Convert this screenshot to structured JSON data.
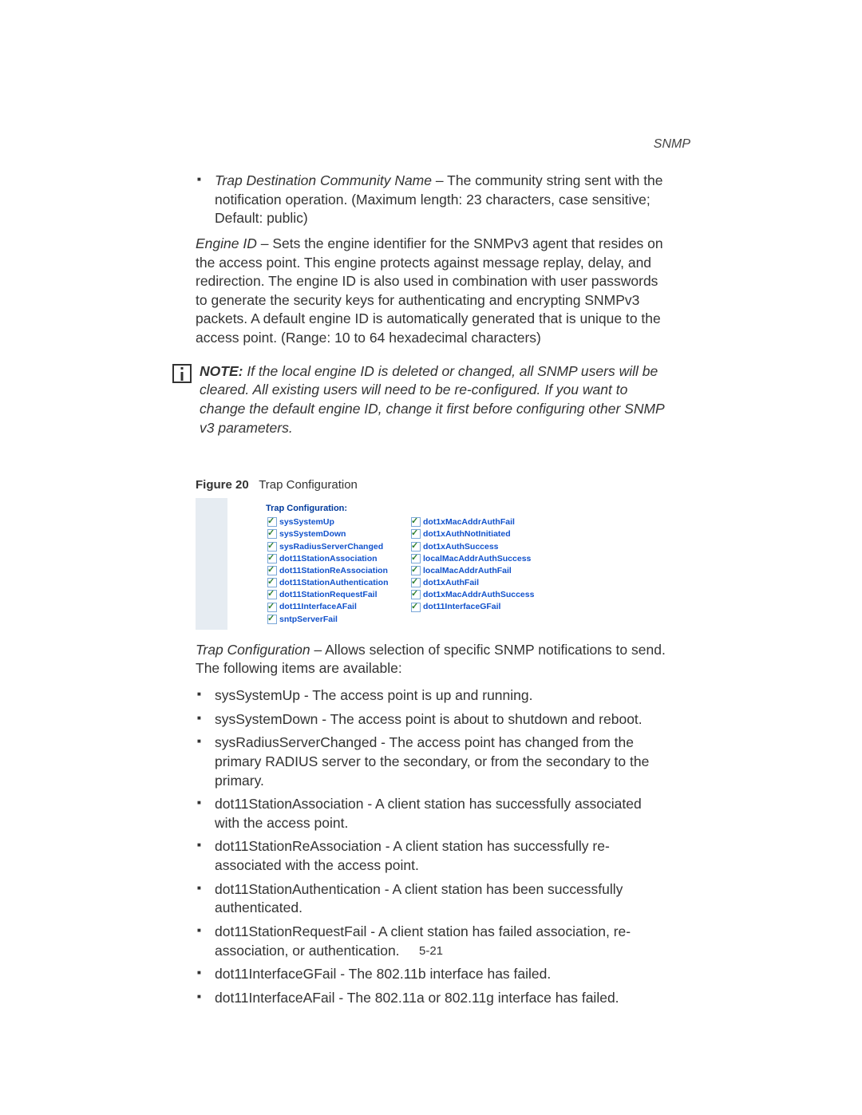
{
  "header": {
    "section": "SNMP"
  },
  "bullet_trap_dest": {
    "term": "Trap Destination Community Name",
    "desc": " – The community string sent with the notification operation. (Maximum length: 23 characters, case sensitive; Default: public)"
  },
  "engine_para": {
    "term": "Engine ID",
    "desc": " – Sets the engine identifier for the SNMPv3 agent that resides on the access point. This engine protects against message replay, delay, and redirection. The engine ID is also used in combination with user passwords to generate the security keys for authenticating and encrypting SNMPv3 packets. A default engine ID is automatically generated that is unique to the access point. (Range: 10 to 64 hexadecimal characters)"
  },
  "note": {
    "label": "NOTE:",
    "text": " If the local engine ID is deleted or changed, all SNMP users will be cleared. All existing users will need to be re-configured. If you want to change the default engine ID, change it first before configuring other SNMP v3 parameters."
  },
  "figure": {
    "num": "Figure 20",
    "caption": "Trap Configuration"
  },
  "screenshot": {
    "title": "Trap Configuration:",
    "colors": {
      "title_color": "#003a9c",
      "label_color": "#1152cc",
      "check_color": "#2e7f2e",
      "border_color": "#7aa7d8",
      "sidebar_color": "#e6ecf2"
    },
    "rows": [
      {
        "left": "sysSystemUp",
        "right": "dot1xMacAddrAuthFail"
      },
      {
        "left": "sysSystemDown",
        "right": "dot1xAuthNotInitiated"
      },
      {
        "left": "sysRadiusServerChanged",
        "right": "dot1xAuthSuccess"
      },
      {
        "left": "dot11StationAssociation",
        "right": "localMacAddrAuthSuccess"
      },
      {
        "left": "dot11StationReAssociation",
        "right": "localMacAddrAuthFail"
      },
      {
        "left": "dot11StationAuthentication",
        "right": "dot1xAuthFail"
      },
      {
        "left": "dot11StationRequestFail",
        "right": "dot1xMacAddrAuthSuccess"
      },
      {
        "left": "dot11InterfaceAFail",
        "right": "dot11InterfaceGFail"
      },
      {
        "left": "sntpServerFail",
        "right": ""
      }
    ]
  },
  "trap_conf": {
    "term": "Trap Configuration",
    "desc": " – Allows selection of specific SNMP notifications to send. The following items are available:"
  },
  "trap_items": [
    "sysSystemUp - The access point is up and running.",
    "sysSystemDown - The access point is about to shutdown and reboot.",
    "sysRadiusServerChanged - The access point has changed from the primary RADIUS server to the secondary, or from the secondary to the primary.",
    "dot11StationAssociation - A client station has successfully associated with the access point.",
    "dot11StationReAssociation - A client station has successfully re-associated with the access point.",
    "dot11StationAuthentication - A client station has been successfully authenticated.",
    "dot11StationRequestFail - A client station has failed association, re-association, or authentication.",
    "dot11InterfaceGFail - The 802.11b interface has failed.",
    "dot11InterfaceAFail - The 802.11a or 802.11g interface has failed."
  ],
  "page_number": "5-21"
}
